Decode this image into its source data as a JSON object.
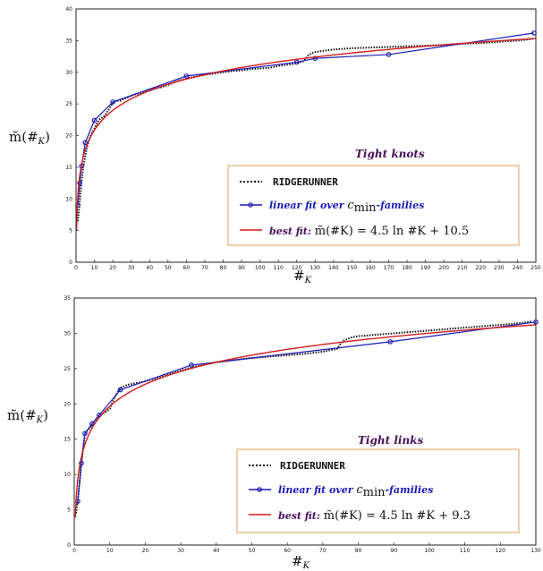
{
  "chart_data": [
    {
      "type": "line",
      "title": "Tight knots",
      "xlabel": "#_K",
      "ylabel": "m̃(#_K)",
      "xlim": [
        0,
        250
      ],
      "ylim": [
        0,
        40
      ],
      "xticks": [
        0,
        10,
        20,
        30,
        40,
        50,
        60,
        70,
        80,
        90,
        100,
        110,
        120,
        130,
        140,
        150,
        160,
        170,
        180,
        190,
        200,
        210,
        220,
        230,
        240,
        250
      ],
      "yticks": [
        0,
        5,
        10,
        15,
        20,
        25,
        30,
        35,
        40
      ],
      "grid": false,
      "legend_position": "bottom-right",
      "series": [
        {
          "name": "RIDGERUNNER",
          "style": "dotted",
          "color": "#111111",
          "x": [
            1,
            2,
            3,
            4,
            5,
            6,
            7,
            8,
            9,
            10,
            11,
            12,
            13,
            14,
            15,
            16,
            17,
            18,
            19,
            20,
            22,
            24,
            26,
            28,
            30,
            32,
            34,
            36,
            38,
            40,
            42,
            44,
            46,
            48,
            50,
            55,
            60,
            65,
            70,
            75,
            80,
            85,
            90,
            95,
            100,
            105,
            110,
            115,
            120,
            124,
            126,
            128,
            130,
            135,
            140,
            150,
            160,
            170,
            180,
            190,
            200,
            210,
            220,
            230,
            240,
            249
          ],
          "y": [
            6.5,
            9.5,
            12.8,
            15.2,
            16.7,
            18.2,
            19.2,
            20.0,
            20.6,
            21.1,
            21.7,
            22.2,
            22.6,
            22.8,
            23.0,
            23.3,
            23.8,
            24.2,
            24.7,
            25.2,
            25.5,
            25.5,
            25.8,
            26.0,
            26.3,
            26.5,
            26.6,
            26.8,
            27.0,
            27.1,
            27.3,
            27.5,
            27.6,
            27.8,
            28.0,
            28.6,
            29.0,
            29.3,
            29.6,
            29.8,
            30.0,
            30.2,
            30.3,
            30.5,
            30.6,
            30.7,
            31.0,
            31.2,
            31.4,
            31.8,
            32.6,
            33.0,
            33.2,
            33.4,
            33.6,
            33.8,
            33.9,
            34.0,
            34.1,
            34.2,
            34.3,
            34.5,
            34.6,
            34.8,
            35.0,
            35.3
          ]
        },
        {
          "name": "linear fit over c_min-families",
          "style": "solid-markers",
          "color": "#1a1ab8",
          "x": [
            1,
            2,
            3,
            5,
            10,
            20,
            60,
            120,
            130,
            170,
            249
          ],
          "y": [
            9.0,
            12.5,
            15.2,
            18.9,
            22.4,
            25.3,
            29.4,
            31.6,
            32.2,
            32.8,
            36.2
          ]
        },
        {
          "name": "best fit",
          "style": "solid",
          "color": "#d41c1c",
          "function": "4.5 ln(x) + 10.5",
          "a": 4.5,
          "b": 10.5
        }
      ],
      "legend": {
        "ridgerunner": "RIDGERUNNER",
        "linear_text": "linear fit over ",
        "linear_math": "c",
        "linear_sub": "min",
        "linear_tail": "-families",
        "best_text": "best fit: ",
        "best_eq": "m̃(#K) = 4.5 ln #K + 10.5"
      }
    },
    {
      "type": "line",
      "title": "Tight links",
      "xlabel": "#_K",
      "ylabel": "m̃(#_K)",
      "xlim": [
        0,
        130
      ],
      "ylim": [
        0,
        35
      ],
      "xticks": [
        0,
        10,
        20,
        30,
        40,
        50,
        60,
        70,
        80,
        90,
        100,
        110,
        120,
        130
      ],
      "yticks": [
        0,
        5,
        10,
        15,
        20,
        25,
        30,
        35
      ],
      "grid": false,
      "legend_position": "bottom-right",
      "series": [
        {
          "name": "RIDGERUNNER",
          "style": "dotted",
          "color": "#111111",
          "x": [
            0.5,
            1,
            2,
            3,
            4,
            5,
            6,
            7,
            8,
            9,
            10,
            11,
            12,
            13,
            14,
            15,
            16,
            18,
            20,
            22,
            24,
            26,
            28,
            30,
            32,
            34,
            36,
            38,
            40,
            45,
            50,
            55,
            60,
            65,
            70,
            72,
            74,
            75,
            76,
            78,
            80,
            85,
            90,
            95,
            100,
            105,
            110,
            115,
            120,
            125,
            129
          ],
          "y": [
            4.5,
            6.2,
            11.5,
            15.8,
            16.4,
            16.9,
            17.5,
            18.2,
            18.6,
            18.9,
            19.3,
            20.5,
            21.5,
            22.3,
            22.5,
            22.7,
            22.8,
            23.0,
            23.2,
            23.5,
            23.8,
            24.1,
            24.4,
            24.7,
            25.0,
            25.3,
            25.5,
            25.7,
            25.9,
            26.2,
            26.5,
            26.7,
            26.9,
            27.1,
            27.4,
            27.6,
            27.8,
            28.5,
            29.0,
            29.4,
            29.6,
            29.8,
            30.0,
            30.2,
            30.4,
            30.6,
            30.8,
            31.0,
            31.2,
            31.4,
            31.7
          ]
        },
        {
          "name": "linear fit over c_min-families",
          "style": "solid-markers",
          "color": "#1a1ab8",
          "x": [
            1,
            2,
            3,
            5,
            7,
            13,
            33,
            89,
            130
          ],
          "y": [
            6.2,
            11.6,
            15.8,
            17.2,
            18.4,
            22.0,
            25.5,
            28.8,
            31.6
          ]
        },
        {
          "name": "best fit",
          "style": "solid",
          "color": "#d41c1c",
          "function": "4.5 ln(x) + 9.3",
          "a": 4.5,
          "b": 9.3
        }
      ],
      "legend": {
        "ridgerunner": "RIDGERUNNER",
        "linear_text": "linear fit over ",
        "linear_math": "c",
        "linear_sub": "min",
        "linear_tail": "-families",
        "best_text": "best fit: ",
        "best_eq": "m̃(#K) = 4.5 ln #K + 9.3"
      }
    }
  ]
}
